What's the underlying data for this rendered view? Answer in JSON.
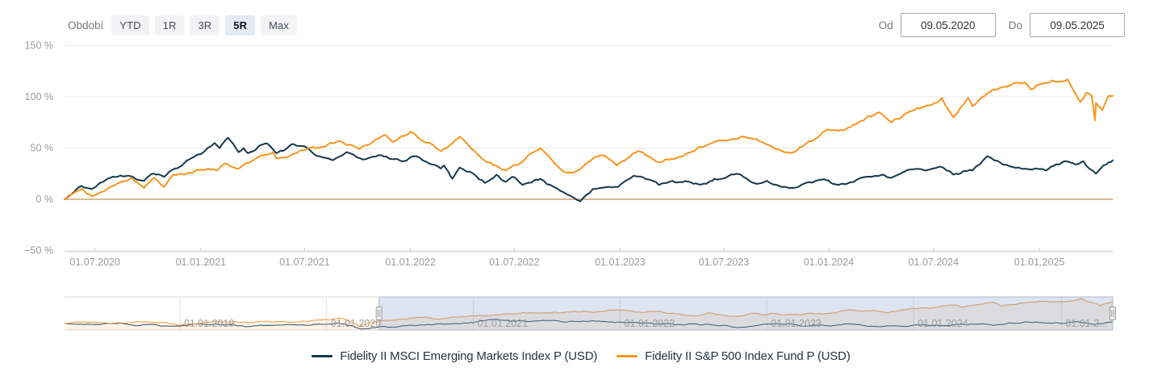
{
  "toolbar": {
    "period_label": "Období",
    "periods": [
      {
        "label": "YTD",
        "selected": false
      },
      {
        "label": "1R",
        "selected": false
      },
      {
        "label": "3R",
        "selected": false
      },
      {
        "label": "5R",
        "selected": true
      },
      {
        "label": "Max",
        "selected": false
      }
    ],
    "from_label": "Od",
    "from_value": "09.05.2020",
    "to_label": "Do",
    "to_value": "09.05.2025"
  },
  "legend": {
    "items": [
      {
        "label": "Fidelity II MSCI Emerging Markets Index P (USD)",
        "color": "#14384c"
      },
      {
        "label": "Fidelity II S&P 500 Index Fund P (USD)",
        "color": "#f8941d"
      }
    ]
  },
  "colors": {
    "grid": "#e8e8e8",
    "zero_line": "#c9a46e",
    "axis": "#cccccc",
    "axis_label": "#9a9a9a",
    "nav_grid": "#e2e2e2",
    "nav_border": "#d9d9d9",
    "nav_label": "#999999",
    "nav_mask": "rgba(102,133,194,0.22)",
    "nav_outline": "#b4bac9",
    "nav_area_fill": "rgba(248,148,29,0.10)",
    "handle_fill": "#f2f2f2",
    "handle_stroke": "#999999"
  },
  "chart_data": {
    "type": "line",
    "y_unit": "%",
    "x_range": [
      "09.05.2020",
      "09.05.2025"
    ],
    "y_ticks": [
      {
        "value": 150,
        "label": "150 %"
      },
      {
        "value": 100,
        "label": "100 %"
      },
      {
        "value": 50,
        "label": "50 %"
      },
      {
        "value": 0,
        "label": "0 %"
      },
      {
        "value": -50,
        "label": "−50 %"
      }
    ],
    "x_ticks": [
      {
        "t": 0.029,
        "label": "01.07.2020"
      },
      {
        "t": 0.13,
        "label": "01.01.2021"
      },
      {
        "t": 0.229,
        "label": "01.07.2021"
      },
      {
        "t": 0.33,
        "label": "01.01.2022"
      },
      {
        "t": 0.429,
        "label": "01.07.2022"
      },
      {
        "t": 0.53,
        "label": "01.01.2023"
      },
      {
        "t": 0.629,
        "label": "01.07.2023"
      },
      {
        "t": 0.729,
        "label": "01.01.2024"
      },
      {
        "t": 0.829,
        "label": "01.07.2024"
      },
      {
        "t": 0.93,
        "label": "01.01.2025"
      }
    ],
    "series": [
      {
        "name": "Fidelity II MSCI Emerging Markets Index P (USD)",
        "color": "#14384c",
        "points": [
          [
            0,
            0
          ],
          [
            0.016,
            13
          ],
          [
            0.026,
            10
          ],
          [
            0.041,
            20
          ],
          [
            0.061,
            23
          ],
          [
            0.076,
            18
          ],
          [
            0.085,
            25
          ],
          [
            0.095,
            22
          ],
          [
            0.112,
            33
          ],
          [
            0.13,
            44
          ],
          [
            0.143,
            55
          ],
          [
            0.148,
            50
          ],
          [
            0.156,
            60
          ],
          [
            0.166,
            46
          ],
          [
            0.171,
            50
          ],
          [
            0.175,
            45
          ],
          [
            0.194,
            54
          ],
          [
            0.202,
            45
          ],
          [
            0.218,
            54
          ],
          [
            0.232,
            50
          ],
          [
            0.243,
            42
          ],
          [
            0.256,
            38
          ],
          [
            0.269,
            46
          ],
          [
            0.282,
            40
          ],
          [
            0.302,
            43
          ],
          [
            0.323,
            37
          ],
          [
            0.336,
            42
          ],
          [
            0.359,
            30
          ],
          [
            0.362,
            33
          ],
          [
            0.37,
            20
          ],
          [
            0.377,
            31
          ],
          [
            0.39,
            25
          ],
          [
            0.401,
            16
          ],
          [
            0.412,
            24
          ],
          [
            0.421,
            17
          ],
          [
            0.427,
            22
          ],
          [
            0.437,
            14
          ],
          [
            0.454,
            20
          ],
          [
            0.479,
            5
          ],
          [
            0.492,
            -2
          ],
          [
            0.504,
            10
          ],
          [
            0.528,
            12
          ],
          [
            0.543,
            23
          ],
          [
            0.567,
            14
          ],
          [
            0.58,
            18
          ],
          [
            0.612,
            15
          ],
          [
            0.62,
            20
          ],
          [
            0.645,
            24
          ],
          [
            0.657,
            16
          ],
          [
            0.67,
            18
          ],
          [
            0.693,
            11
          ],
          [
            0.72,
            19
          ],
          [
            0.738,
            14
          ],
          [
            0.753,
            17
          ],
          [
            0.78,
            24
          ],
          [
            0.789,
            21
          ],
          [
            0.806,
            29
          ],
          [
            0.821,
            28
          ],
          [
            0.835,
            32
          ],
          [
            0.848,
            24
          ],
          [
            0.866,
            28
          ],
          [
            0.88,
            42
          ],
          [
            0.887,
            38
          ],
          [
            0.91,
            31
          ],
          [
            0.923,
            29
          ],
          [
            0.936,
            28
          ],
          [
            0.956,
            37
          ],
          [
            0.964,
            34
          ],
          [
            0.972,
            37
          ],
          [
            0.984,
            25
          ],
          [
            0.991,
            33
          ],
          [
            0.996,
            36
          ],
          [
            1,
            38
          ]
        ]
      },
      {
        "name": "Fidelity II S&P 500 Index Fund P (USD)",
        "color": "#f8941d",
        "points": [
          [
            0,
            0
          ],
          [
            0.016,
            10
          ],
          [
            0.026,
            3
          ],
          [
            0.046,
            13
          ],
          [
            0.064,
            21
          ],
          [
            0.076,
            11
          ],
          [
            0.085,
            21
          ],
          [
            0.095,
            12
          ],
          [
            0.104,
            24
          ],
          [
            0.113,
            24
          ],
          [
            0.129,
            29
          ],
          [
            0.145,
            28
          ],
          [
            0.153,
            35
          ],
          [
            0.164,
            30
          ],
          [
            0.18,
            38
          ],
          [
            0.199,
            46
          ],
          [
            0.202,
            40
          ],
          [
            0.228,
            48
          ],
          [
            0.263,
            57
          ],
          [
            0.281,
            49
          ],
          [
            0.306,
            63
          ],
          [
            0.313,
            56
          ],
          [
            0.33,
            66
          ],
          [
            0.359,
            47
          ],
          [
            0.377,
            61
          ],
          [
            0.405,
            36
          ],
          [
            0.421,
            28
          ],
          [
            0.454,
            50
          ],
          [
            0.479,
            26
          ],
          [
            0.485,
            26
          ],
          [
            0.512,
            43
          ],
          [
            0.527,
            33
          ],
          [
            0.547,
            47
          ],
          [
            0.568,
            36
          ],
          [
            0.59,
            42
          ],
          [
            0.62,
            56
          ],
          [
            0.645,
            61
          ],
          [
            0.693,
            45
          ],
          [
            0.728,
            68
          ],
          [
            0.738,
            67
          ],
          [
            0.777,
            85
          ],
          [
            0.789,
            75
          ],
          [
            0.827,
            92
          ],
          [
            0.837,
            99
          ],
          [
            0.848,
            80
          ],
          [
            0.862,
            99
          ],
          [
            0.866,
            91
          ],
          [
            0.889,
            107
          ],
          [
            0.902,
            111
          ],
          [
            0.916,
            114
          ],
          [
            0.922,
            107
          ],
          [
            0.942,
            116
          ],
          [
            0.957,
            117
          ],
          [
            0.969,
            95
          ],
          [
            0.975,
            104
          ],
          [
            0.98,
            101
          ],
          [
            0.983,
            77
          ],
          [
            0.984,
            94
          ],
          [
            0.99,
            87
          ],
          [
            0.996,
            101
          ],
          [
            1,
            101
          ]
        ]
      }
    ],
    "navigator": {
      "x_ticks": [
        {
          "t": 0.11,
          "label": "01.01.2019"
        },
        {
          "t": 0.25,
          "label": "01.01.2020"
        },
        {
          "t": 0.39,
          "label": "01.01.2021"
        },
        {
          "t": 0.53,
          "label": "01.01.2022"
        },
        {
          "t": 0.67,
          "label": "01.01.2023"
        },
        {
          "t": 0.81,
          "label": "01.01.2024"
        },
        {
          "t": 0.951,
          "label": "01.01.2..."
        }
      ],
      "selection": {
        "from_t": 0.3,
        "to_t": 1.0
      },
      "y_range": [
        -40,
        155
      ],
      "series": [
        {
          "name": "Fidelity II MSCI Emerging Markets Index P (USD)",
          "color": "#2e4f63",
          "points": [
            [
              0,
              0
            ],
            [
              0.05,
              -2
            ],
            [
              0.107,
              -16
            ],
            [
              0.15,
              -8
            ],
            [
              0.19,
              -14
            ],
            [
              0.22,
              -10
            ],
            [
              0.25,
              -6
            ],
            [
              0.266,
              -4
            ],
            [
              0.282,
              -34
            ],
            [
              0.3,
              -23
            ],
            [
              0.344,
              -10
            ],
            [
              0.39,
              3
            ],
            [
              0.409,
              21
            ],
            [
              0.43,
              12
            ],
            [
              0.46,
              16
            ],
            [
              0.49,
              9
            ],
            [
              0.53,
              6
            ],
            [
              0.56,
              0
            ],
            [
              0.59,
              -10
            ],
            [
              0.615,
              -7
            ],
            [
              0.64,
              -25
            ],
            [
              0.66,
              -14
            ],
            [
              0.675,
              -6
            ],
            [
              0.7,
              -12
            ],
            [
              0.72,
              -11
            ],
            [
              0.751,
              -6
            ],
            [
              0.785,
              -15
            ],
            [
              0.81,
              -11
            ],
            [
              0.83,
              -13
            ],
            [
              0.85,
              -8
            ],
            [
              0.87,
              -5
            ],
            [
              0.894,
              -8
            ],
            [
              0.916,
              8
            ],
            [
              0.935,
              1
            ],
            [
              0.955,
              -1
            ],
            [
              0.97,
              5
            ],
            [
              0.988,
              -3
            ],
            [
              1,
              6
            ]
          ]
        },
        {
          "name": "Fidelity II S&P 500 Index Fund P (USD)",
          "color": "#f09c42",
          "points": [
            [
              0,
              0
            ],
            [
              0.04,
              2
            ],
            [
              0.075,
              8
            ],
            [
              0.107,
              -11
            ],
            [
              0.15,
              8
            ],
            [
              0.175,
              2
            ],
            [
              0.21,
              11
            ],
            [
              0.25,
              22
            ],
            [
              0.266,
              28
            ],
            [
              0.282,
              -15
            ],
            [
              0.3,
              12
            ],
            [
              0.32,
              23
            ],
            [
              0.344,
              37
            ],
            [
              0.352,
              25
            ],
            [
              0.39,
              43
            ],
            [
              0.409,
              48
            ],
            [
              0.43,
              55
            ],
            [
              0.46,
              61
            ],
            [
              0.49,
              66
            ],
            [
              0.51,
              68
            ],
            [
              0.53,
              76
            ],
            [
              0.55,
              64
            ],
            [
              0.565,
              70
            ],
            [
              0.585,
              55
            ],
            [
              0.6,
              43
            ],
            [
              0.615,
              62
            ],
            [
              0.64,
              40
            ],
            [
              0.655,
              59
            ],
            [
              0.667,
              48
            ],
            [
              0.675,
              59
            ],
            [
              0.69,
              51
            ],
            [
              0.72,
              57
            ],
            [
              0.74,
              70
            ],
            [
              0.751,
              79
            ],
            [
              0.785,
              61
            ],
            [
              0.81,
              87
            ],
            [
              0.83,
              93
            ],
            [
              0.85,
              106
            ],
            [
              0.858,
              95
            ],
            [
              0.886,
              123
            ],
            [
              0.894,
              99
            ],
            [
              0.916,
              118
            ],
            [
              0.935,
              131
            ],
            [
              0.955,
              127
            ],
            [
              0.97,
              144
            ],
            [
              0.982,
              118
            ],
            [
              0.988,
              102
            ],
            [
              1,
              126
            ]
          ]
        }
      ]
    }
  }
}
